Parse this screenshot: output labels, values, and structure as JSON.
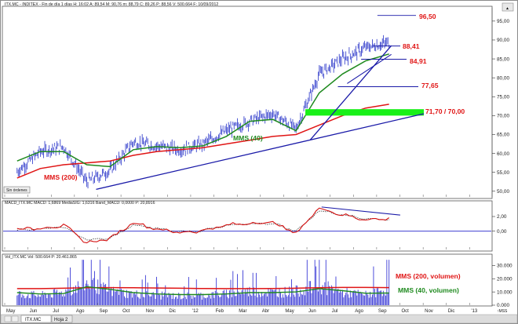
{
  "window": {
    "top_header": "ITX.MC - INDITEX - Fin de día 1 días H: 16:02 A: 89,54 M: 90,76 m: 88,79 C: 89,26 P: 88,56 V: 500.664 F: 10/09/2012",
    "sin_ordenes": "Sin órdenes",
    "macd_header": "MACD_ITX.MC MACD: 1,6869 MediaSIG: 1,6316 Band_MACD: 0,0000 P: 20,8916",
    "vol_header": "Vol_ITX.MC Vol: 500.664 P: 20.461.865",
    "tabs": [
      "ITX.MC",
      "Hoja 2"
    ],
    "corner_label": "↑MSS"
  },
  "colors": {
    "price": "#2430c8",
    "mms200": "#e01515",
    "mms40": "#1f8a1f",
    "trend": "#1a1aa8",
    "support_zone": "#18f018",
    "macd": "#d41010",
    "signal": "#000000",
    "zero": "#2222cc",
    "volume": "#3b3bd6",
    "annotation_red": "#e01515",
    "annotation_green": "#1f8a1f"
  },
  "chart_data": [
    {
      "type": "line",
      "panel": "price",
      "x_ticks": [
        "May",
        "Jun",
        "Jul",
        "Ago",
        "Sep",
        "Oct",
        "Nov",
        "Dic",
        "'12",
        "Feb",
        "Mar",
        "Abr",
        "May",
        "Jun",
        "Jul",
        "Ago",
        "Sep",
        "Oct",
        "Nov",
        "Dic",
        "'13"
      ],
      "y_ticks": [
        "50,00",
        "55,00",
        "60,00",
        "65,00",
        "70,00",
        "75,00",
        "80,00",
        "85,00",
        "90,00",
        "95,00"
      ],
      "ylim": [
        48.5,
        98.5
      ],
      "series": [
        {
          "name": "ITX.MC",
          "style": "bars",
          "x": [
            0,
            1,
            2,
            3,
            4,
            5,
            6,
            7,
            8,
            9,
            10,
            11,
            12,
            13,
            14,
            15,
            16
          ],
          "values": [
            55.2,
            60.5,
            61.8,
            52.5,
            55.5,
            63.0,
            62.0,
            61.0,
            62.5,
            66.0,
            68.5,
            70.5,
            66.5,
            81.0,
            85.0,
            88.0,
            89.3
          ]
        },
        {
          "name": "MMS (40)",
          "x": [
            0,
            1,
            2,
            3,
            4,
            5,
            6,
            7,
            8,
            9,
            10,
            11,
            12,
            13,
            14,
            15,
            16
          ],
          "values": [
            58.0,
            60.5,
            60.5,
            57.0,
            56.5,
            61.0,
            61.8,
            61.5,
            62.0,
            64.5,
            68.5,
            69.0,
            66.0,
            76.0,
            81.0,
            84.5,
            86.3
          ]
        },
        {
          "name": "MMS (200)",
          "x": [
            0,
            1,
            2,
            3,
            4,
            5,
            6,
            7,
            8,
            9,
            10,
            11,
            12,
            13,
            14,
            15,
            16
          ],
          "values": [
            53.5,
            56.0,
            57.0,
            57.5,
            58.0,
            59.5,
            60.5,
            61.0,
            61.5,
            62.5,
            63.5,
            64.5,
            65.0,
            67.5,
            70.0,
            72.0,
            73.0
          ]
        }
      ],
      "annotations": [
        {
          "label": "96,50",
          "value": 96.5,
          "color": "red"
        },
        {
          "label": "88,41",
          "value": 88.41,
          "color": "red"
        },
        {
          "label": "84,91",
          "value": 84.91,
          "color": "red"
        },
        {
          "label": "77,65",
          "value": 77.65,
          "color": "red"
        },
        {
          "label": "71,70 / 70,00",
          "value_range": [
            70.0,
            71.7
          ],
          "color": "red"
        },
        {
          "label": "MMS (40)",
          "color": "green"
        },
        {
          "label": "MMS (200)",
          "color": "red"
        }
      ]
    },
    {
      "type": "line",
      "panel": "macd",
      "y_ticks": [
        "2,00",
        "0,00"
      ],
      "ylim": [
        -2.5,
        3.5
      ],
      "series": [
        {
          "name": "MACD",
          "x": [
            0,
            1,
            2,
            3,
            4,
            5,
            6,
            7,
            8,
            9,
            10,
            11,
            12,
            13,
            14,
            15,
            16
          ],
          "values": [
            0.3,
            0.4,
            0.8,
            -1.6,
            -1.0,
            1.2,
            0.3,
            -0.2,
            0.1,
            0.8,
            1.1,
            1.2,
            -0.3,
            3.2,
            2.2,
            1.6,
            1.7
          ]
        },
        {
          "name": "Signal",
          "x": [
            0,
            1,
            2,
            3,
            4,
            5,
            6,
            7,
            8,
            9,
            10,
            11,
            12,
            13,
            14,
            15,
            16
          ],
          "values": [
            0.2,
            0.3,
            0.6,
            -1.2,
            -1.0,
            0.8,
            0.4,
            -0.1,
            0.1,
            0.7,
            1.0,
            1.1,
            0.0,
            2.8,
            2.3,
            1.7,
            1.6
          ]
        }
      ]
    },
    {
      "type": "bar",
      "panel": "volume",
      "y_ticks": [
        "30.000",
        "20.000",
        "10.000",
        "0.000"
      ],
      "ylim": [
        0,
        35000
      ],
      "series": [
        {
          "name": "Vol",
          "x": [
            0,
            1,
            2,
            3,
            4,
            5,
            6,
            7,
            8,
            9,
            10,
            11,
            12,
            13,
            14,
            15,
            16
          ],
          "values": [
            8000,
            7000,
            9000,
            16000,
            10000,
            8000,
            7000,
            6500,
            7000,
            8000,
            10000,
            9000,
            10000,
            14000,
            9000,
            7500,
            12000
          ]
        },
        {
          "name": "MMS (200, volumen)",
          "x": [
            0,
            1,
            2,
            3,
            4,
            5,
            6,
            7,
            8,
            9,
            10,
            11,
            12,
            13,
            14,
            15,
            16
          ],
          "values": [
            12500,
            12500,
            12800,
            13200,
            13300,
            13200,
            13000,
            12800,
            12600,
            12500,
            12500,
            12600,
            12800,
            13200,
            13400,
            13400,
            13300
          ]
        },
        {
          "name": "MMS (40, volumen)",
          "x": [
            0,
            1,
            2,
            3,
            4,
            5,
            6,
            7,
            8,
            9,
            10,
            11,
            12,
            13,
            14,
            15,
            16
          ],
          "values": [
            9500,
            8500,
            8800,
            14000,
            12000,
            9500,
            8500,
            8000,
            8000,
            8500,
            9500,
            9500,
            10000,
            12500,
            11000,
            9000,
            9200
          ]
        }
      ]
    }
  ]
}
